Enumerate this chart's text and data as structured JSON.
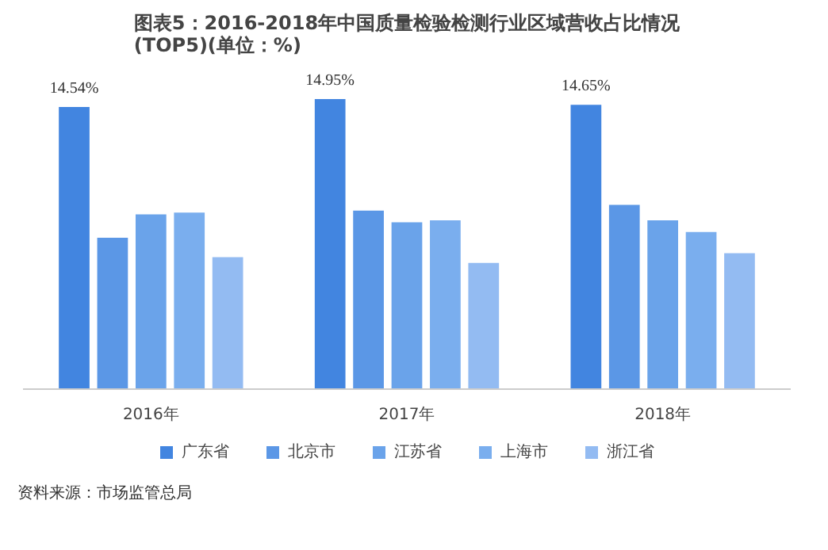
{
  "chart_data": {
    "type": "bar",
    "title": "图表5：2016-2018年中国质量检验检测行业区域营收占比情况\n(TOP5)(单位：%)",
    "categories": [
      "2016年",
      "2017年",
      "2018年"
    ],
    "series": [
      {
        "name": "广东省",
        "color": "#4285e0",
        "values": [
          14.54,
          14.95,
          14.65
        ],
        "value_labels": [
          "14.54%",
          "14.95%",
          "14.65%"
        ]
      },
      {
        "name": "北京市",
        "color": "#5b97e6",
        "values": [
          7.8,
          9.2,
          9.5
        ]
      },
      {
        "name": "江苏省",
        "color": "#6aa3ea",
        "values": [
          9.0,
          8.6,
          8.7
        ]
      },
      {
        "name": "上海市",
        "color": "#7aaeee",
        "values": [
          9.1,
          8.7,
          8.1
        ]
      },
      {
        "name": "浙江省",
        "color": "#93bbf2",
        "values": [
          6.8,
          6.5,
          7.0
        ]
      }
    ],
    "legend": "bottom",
    "annotations": [
      "资料来源：市场监管总局"
    ]
  }
}
